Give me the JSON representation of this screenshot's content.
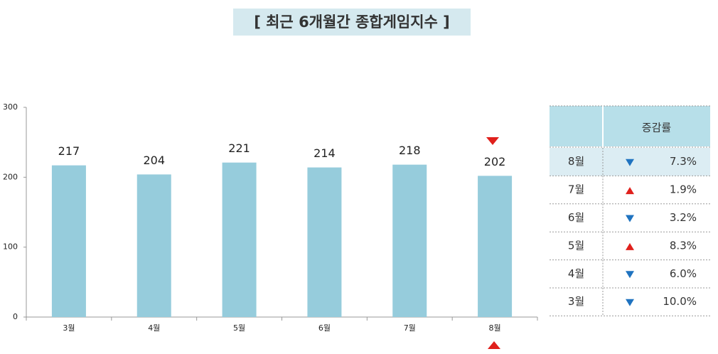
{
  "chart_data": {
    "type": "bar",
    "title": "[ 최근 6개월간 종합게임지수 ]",
    "categories": [
      "3월",
      "4월",
      "5월",
      "6월",
      "7월",
      "8월"
    ],
    "values": [
      217,
      204,
      221,
      214,
      218,
      202
    ],
    "color": "#96ccdc",
    "ylim": [
      0,
      300
    ],
    "yticks": [
      0,
      100,
      200,
      300
    ],
    "grid": false
  },
  "table": {
    "header": "증감률",
    "rows": [
      {
        "month": "8월",
        "direction": "down",
        "change": "7.3%"
      },
      {
        "month": "7월",
        "direction": "up",
        "change": "1.9%"
      },
      {
        "month": "6월",
        "direction": "down",
        "change": "3.2%"
      },
      {
        "month": "5월",
        "direction": "up",
        "change": "8.3%"
      },
      {
        "month": "4월",
        "direction": "down",
        "change": "6.0%"
      },
      {
        "month": "3월",
        "direction": "down",
        "change": "10.0%"
      }
    ]
  }
}
